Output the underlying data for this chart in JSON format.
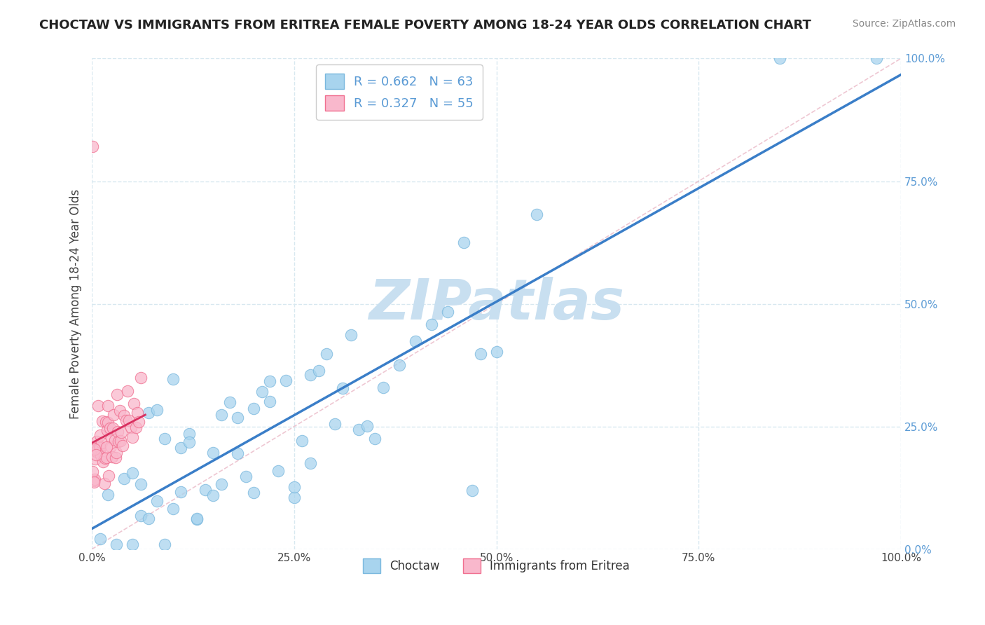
{
  "title": "CHOCTAW VS IMMIGRANTS FROM ERITREA FEMALE POVERTY AMONG 18-24 YEAR OLDS CORRELATION CHART",
  "source": "Source: ZipAtlas.com",
  "ylabel": "Female Poverty Among 18-24 Year Olds",
  "xlim": [
    0,
    1
  ],
  "ylim": [
    0,
    1
  ],
  "xticks": [
    0.0,
    0.25,
    0.5,
    0.75,
    1.0
  ],
  "yticks": [
    0.0,
    0.25,
    0.5,
    0.75,
    1.0
  ],
  "xticklabels": [
    "0.0%",
    "25.0%",
    "50.0%",
    "75.0%",
    "100.0%"
  ],
  "yticklabels": [
    "0.0%",
    "25.0%",
    "50.0%",
    "75.0%",
    "100.0%"
  ],
  "choctaw_color": "#a8d4ee",
  "eritrea_color": "#f9b8cc",
  "choctaw_edge": "#7ab8de",
  "eritrea_edge": "#f07090",
  "trend_blue": "#3a7ec8",
  "trend_pink": "#d83060",
  "identity_color": "#e8b0c0",
  "identity_style": "--",
  "grid_color": "#d8e8f0",
  "grid_style": "--",
  "R_choctaw": 0.662,
  "N_choctaw": 63,
  "R_eritrea": 0.327,
  "N_eritrea": 55,
  "legend_labels": [
    "Choctaw",
    "Immigrants from Eritrea"
  ],
  "watermark": "ZIPatlas",
  "watermark_color": "#c8dff0",
  "background_color": "#ffffff",
  "title_color": "#222222",
  "source_color": "#888888",
  "ylabel_color": "#444444",
  "ytick_color": "#5b9bd5",
  "xtick_color": "#444444",
  "legend_text_color": "#5b9bd5"
}
